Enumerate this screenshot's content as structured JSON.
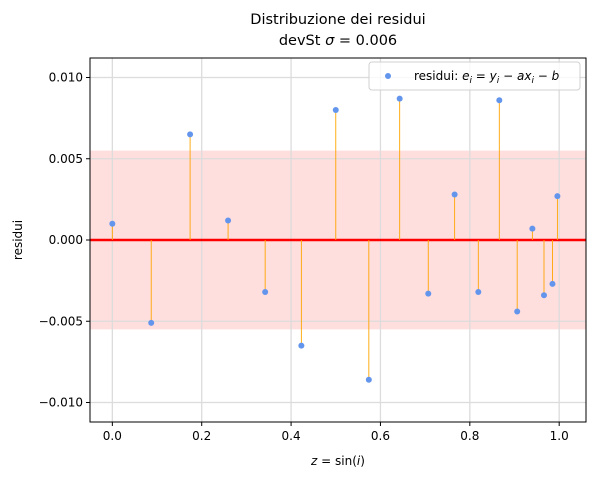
{
  "chart_data": {
    "type": "scatter",
    "title": "Distribuzione dei residui",
    "subtitle": "devSt σ = 0.006",
    "xlabel": "z = sin(i)",
    "ylabel": "residui",
    "xlim": [
      -0.05,
      1.06
    ],
    "ylim": [
      -0.0112,
      0.0112
    ],
    "xticks": [
      0.0,
      0.2,
      0.4,
      0.6,
      0.8,
      1.0
    ],
    "xtick_labels": [
      "0.0",
      "0.2",
      "0.4",
      "0.6",
      "0.8",
      "1.0"
    ],
    "yticks": [
      -0.01,
      -0.005,
      0.0,
      0.005,
      0.01
    ],
    "ytick_labels": [
      "−0.010",
      "−0.005",
      "0.000",
      "0.005",
      "0.010"
    ],
    "grid": true,
    "legend_position": "top-right",
    "band": {
      "lower": -0.0055,
      "upper": 0.0055,
      "color": "#ffdede"
    },
    "zero_line_color": "#ff0000",
    "stem_color": "#ffa500",
    "series": [
      {
        "name": "residui: e_i = y_i − a x_i − b",
        "color": "#6495ed",
        "points": [
          {
            "x": 0.0,
            "y": 0.001
          },
          {
            "x": 0.087,
            "y": -0.0051
          },
          {
            "x": 0.174,
            "y": 0.0065
          },
          {
            "x": 0.259,
            "y": 0.0012
          },
          {
            "x": 0.342,
            "y": -0.0032
          },
          {
            "x": 0.423,
            "y": -0.0065
          },
          {
            "x": 0.5,
            "y": 0.008
          },
          {
            "x": 0.574,
            "y": -0.0086
          },
          {
            "x": 0.643,
            "y": 0.0087
          },
          {
            "x": 0.707,
            "y": -0.0033
          },
          {
            "x": 0.766,
            "y": 0.0028
          },
          {
            "x": 0.819,
            "y": -0.0032
          },
          {
            "x": 0.866,
            "y": 0.0086
          },
          {
            "x": 0.906,
            "y": -0.0044
          },
          {
            "x": 0.94,
            "y": 0.0007
          },
          {
            "x": 0.966,
            "y": -0.0034
          },
          {
            "x": 0.985,
            "y": -0.0027
          },
          {
            "x": 0.996,
            "y": 0.0027
          }
        ]
      }
    ]
  }
}
